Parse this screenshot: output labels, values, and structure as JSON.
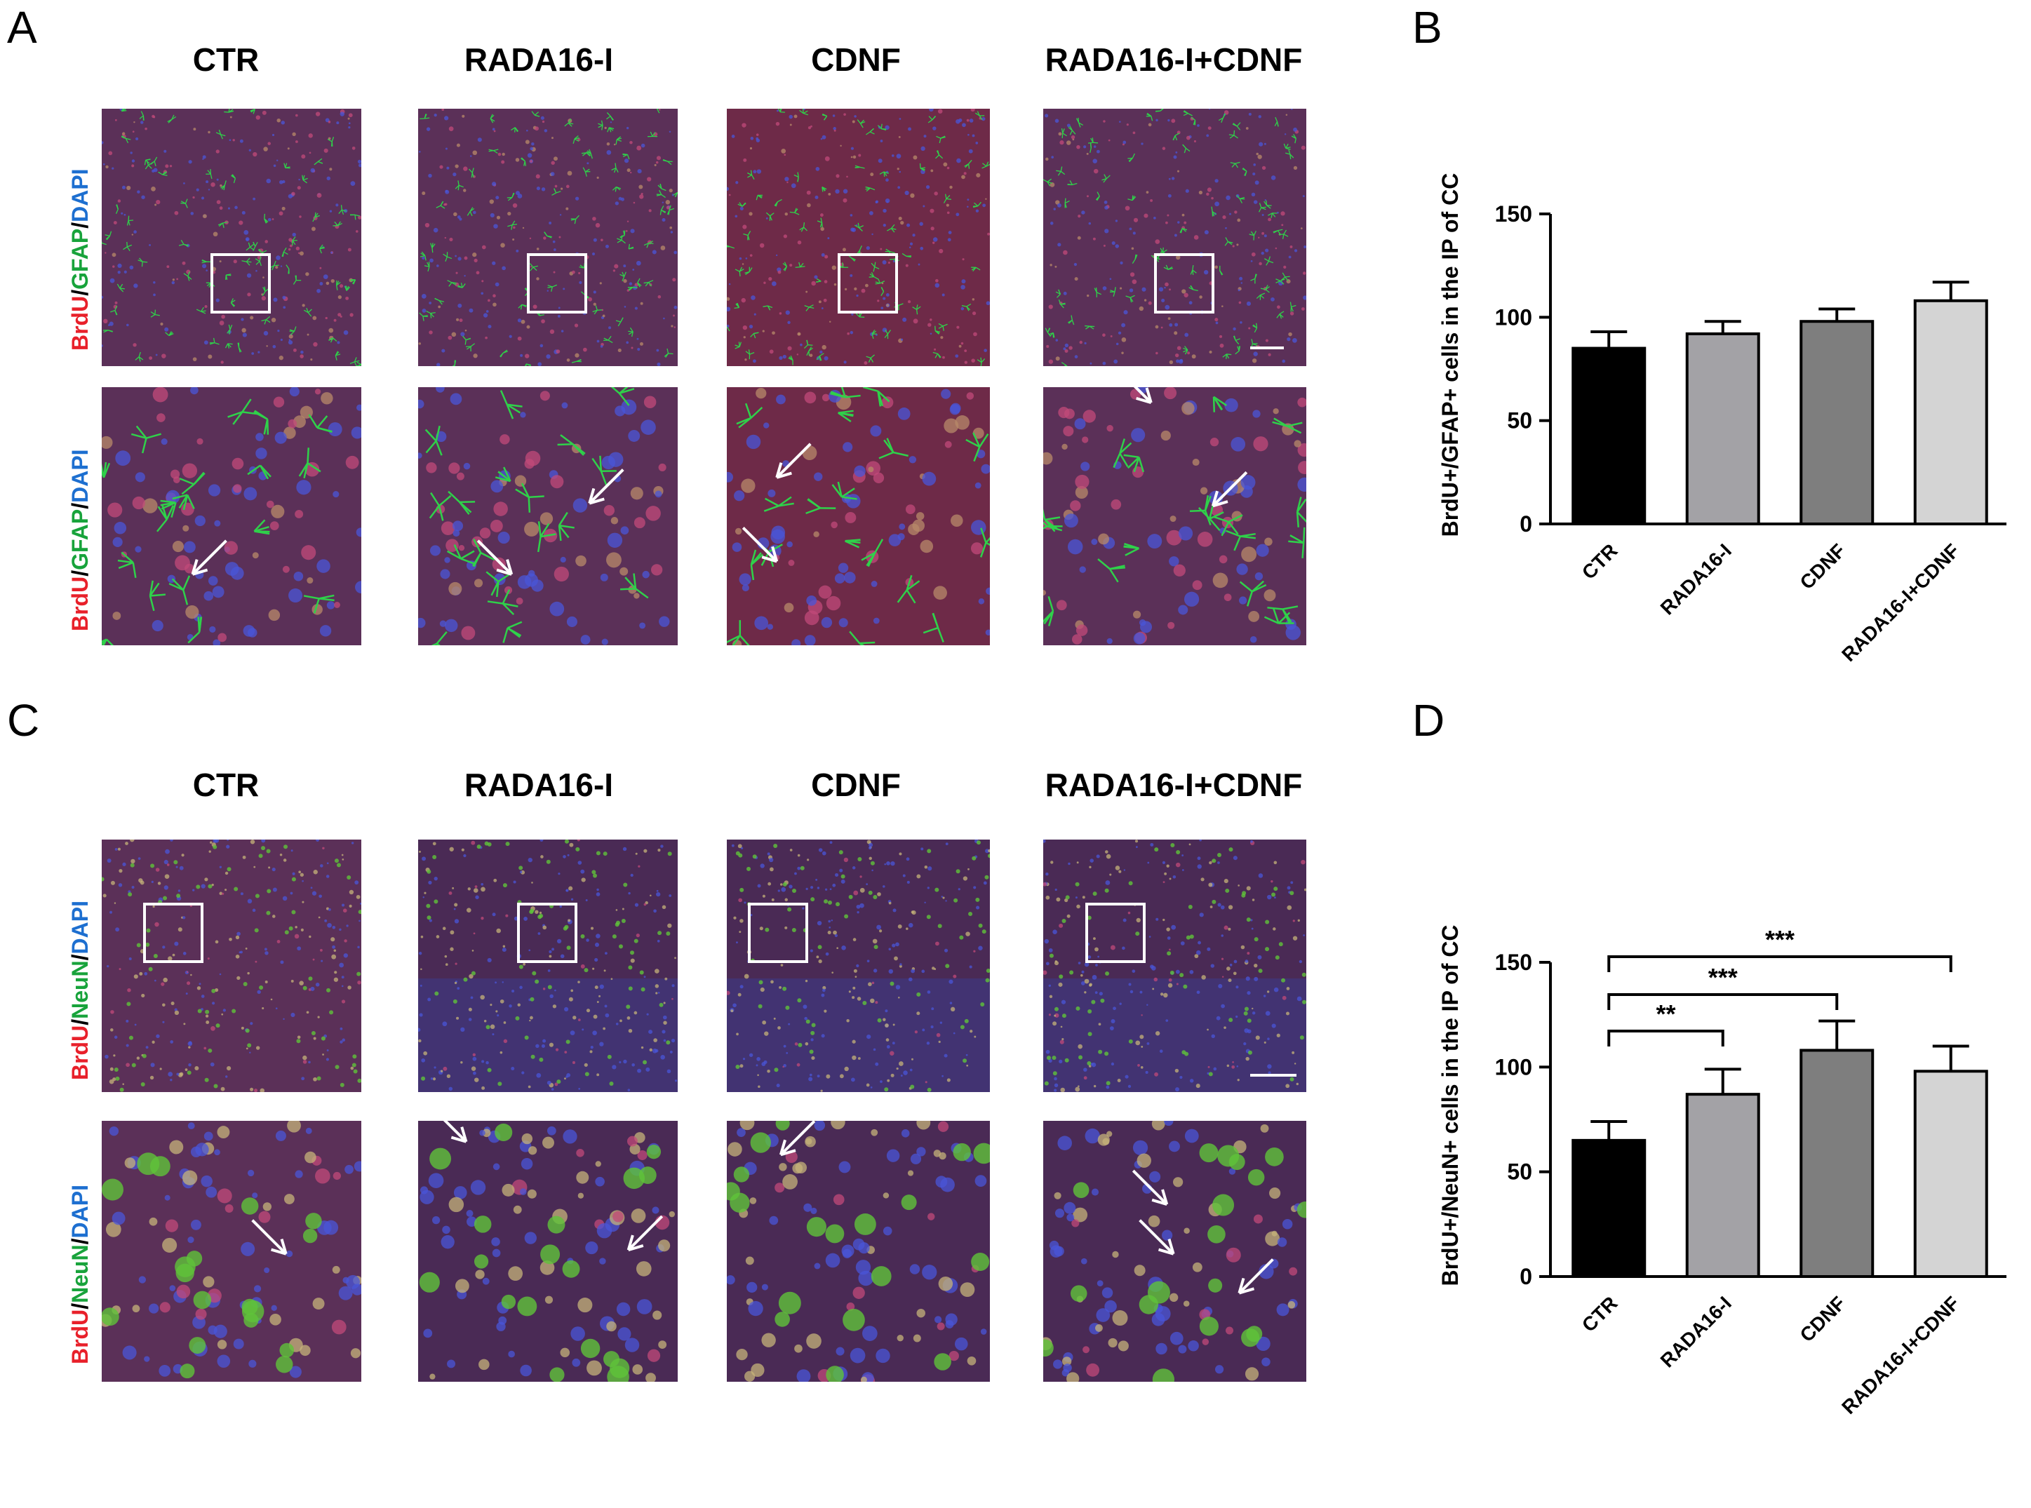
{
  "panels": {
    "A": "A",
    "B": "B",
    "C": "C",
    "D": "D"
  },
  "groups": [
    "CTR",
    "RADA16-I",
    "CDNF",
    "RADA16-I+CDNF"
  ],
  "stain_labels": {
    "gfap": {
      "brdu": "BrdU",
      "sep": "/",
      "marker": "GFAP",
      "sep2": "/",
      "dapi": "DAPI"
    },
    "neun": {
      "brdu": "BrdU",
      "sep": "/",
      "marker": "NeuN",
      "sep2": "/",
      "dapi": "DAPI"
    }
  },
  "colors": {
    "brdu": "#e8202a",
    "gfap": "#18a33b",
    "neun": "#18a33b",
    "dapi": "#1d6fd0",
    "ctr": "#000000",
    "rada": "#a3a2a6",
    "cdnf": "#7e7e7e",
    "combo": "#d4d4d4"
  },
  "chart_data": [
    {
      "type": "bar",
      "panel": "B",
      "categories": [
        "CTR",
        "RADA16-I",
        "CDNF",
        "RADA16-I+CDNF"
      ],
      "values": [
        85,
        92,
        98,
        108
      ],
      "errors": [
        8,
        6,
        6,
        9
      ],
      "ylabel": "BrdU+/GFAP+ cells in the IP of CC",
      "ylim": [
        0,
        150
      ],
      "yticks": [
        0,
        50,
        100,
        150
      ],
      "significance": []
    },
    {
      "type": "bar",
      "panel": "D",
      "categories": [
        "CTR",
        "RADA16-I",
        "CDNF",
        "RADA16-I+CDNF"
      ],
      "values": [
        65,
        87,
        108,
        98
      ],
      "errors": [
        9,
        12,
        14,
        12
      ],
      "ylabel": "BrdU+/NeuN+ cells in the IP of CC",
      "ylim": [
        0,
        150
      ],
      "yticks": [
        0,
        50,
        100,
        150
      ],
      "significance": [
        {
          "from": 0,
          "to": 1,
          "label": "**"
        },
        {
          "from": 0,
          "to": 2,
          "label": "***"
        },
        {
          "from": 0,
          "to": 3,
          "label": "***"
        }
      ]
    }
  ]
}
